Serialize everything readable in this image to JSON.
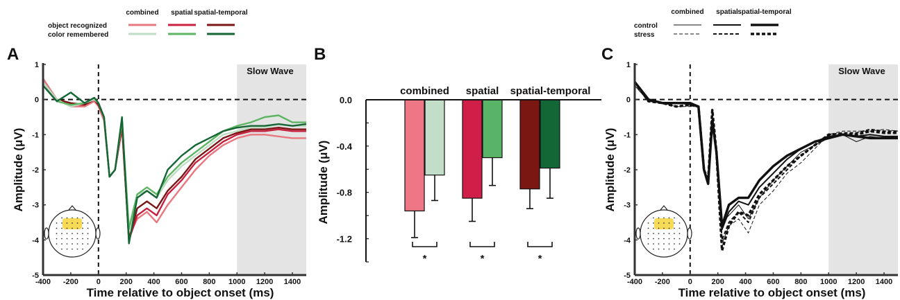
{
  "chart_data": [
    {
      "panel": "A",
      "type": "line",
      "xlabel": "Time relative to object onset (ms)",
      "ylabel": "Amplitude (μV)",
      "xlim": [
        -400,
        1500
      ],
      "ylim": [
        -5,
        1
      ],
      "xticks": [
        -400,
        -200,
        0,
        200,
        400,
        600,
        800,
        1000,
        1200,
        1400
      ],
      "yticks": [
        1,
        0,
        -1,
        -2,
        -3,
        -4,
        -5
      ],
      "shaded_region": {
        "x": [
          1000,
          1500
        ],
        "label": "Slow Wave"
      },
      "legend": {
        "columns": [
          "combined",
          "spatial",
          "spatial-temporal"
        ],
        "rows": [
          "object recognized",
          "color remembered"
        ]
      },
      "series": [
        {
          "name": "object recognized",
          "condition": "combined",
          "color": "#e87880",
          "x": [
            -400,
            -300,
            -200,
            -100,
            -30,
            0,
            40,
            80,
            120,
            170,
            220,
            280,
            350,
            420,
            500,
            600,
            700,
            800,
            900,
            1000,
            1100,
            1200,
            1300,
            1400,
            1500
          ],
          "y": [
            0.6,
            0.0,
            -0.2,
            -0.2,
            -0.05,
            -0.2,
            -0.6,
            -2.2,
            -2.0,
            -0.8,
            -3.9,
            -3.4,
            -3.2,
            -3.5,
            -3.0,
            -2.5,
            -2.0,
            -1.6,
            -1.3,
            -1.1,
            -1.0,
            -1.0,
            -1.05,
            -1.1,
            -1.1
          ]
        },
        {
          "name": "object recognized",
          "condition": "spatial",
          "color": "#c8203f",
          "x": [
            -400,
            -300,
            -200,
            -100,
            -30,
            0,
            40,
            80,
            120,
            170,
            220,
            280,
            350,
            420,
            500,
            600,
            700,
            800,
            900,
            1000,
            1100,
            1200,
            1300,
            1400,
            1500
          ],
          "y": [
            0.5,
            0.0,
            -0.15,
            -0.15,
            0.0,
            -0.15,
            -0.5,
            -2.2,
            -2.0,
            -0.8,
            -4.0,
            -3.3,
            -3.1,
            -3.3,
            -2.7,
            -2.3,
            -1.8,
            -1.5,
            -1.2,
            -1.0,
            -0.9,
            -0.9,
            -0.85,
            -0.9,
            -0.9
          ]
        },
        {
          "name": "object recognized",
          "condition": "spatial-temporal",
          "color": "#7b1515",
          "x": [
            -400,
            -300,
            -200,
            -100,
            -30,
            0,
            40,
            80,
            120,
            170,
            220,
            280,
            350,
            420,
            500,
            600,
            700,
            800,
            900,
            1000,
            1100,
            1200,
            1300,
            1400,
            1500
          ],
          "y": [
            0.5,
            0.0,
            -0.1,
            -0.15,
            0.0,
            -0.15,
            -0.5,
            -2.2,
            -2.0,
            -0.7,
            -4.0,
            -3.1,
            -2.9,
            -3.1,
            -2.6,
            -2.2,
            -1.7,
            -1.4,
            -1.1,
            -0.95,
            -0.85,
            -0.85,
            -0.8,
            -0.85,
            -0.85
          ]
        },
        {
          "name": "color remembered",
          "condition": "combined",
          "color": "#bfdcc4",
          "x": [
            -400,
            -300,
            -200,
            -100,
            -30,
            0,
            40,
            80,
            120,
            170,
            220,
            280,
            350,
            420,
            500,
            600,
            700,
            800,
            900,
            1000,
            1100,
            1200,
            1300,
            1400,
            1500
          ],
          "y": [
            0.5,
            0.0,
            -0.2,
            -0.1,
            0.0,
            -0.1,
            -0.5,
            -2.2,
            -2.0,
            -0.6,
            -3.6,
            -2.7,
            -2.6,
            -2.8,
            -2.3,
            -1.9,
            -1.6,
            -1.3,
            -1.0,
            -0.9,
            -0.8,
            -0.8,
            -0.7,
            -0.75,
            -0.75
          ]
        },
        {
          "name": "color remembered",
          "condition": "spatial",
          "color": "#5db564",
          "x": [
            -400,
            -300,
            -200,
            -100,
            -30,
            0,
            40,
            80,
            120,
            170,
            220,
            280,
            350,
            420,
            500,
            600,
            700,
            800,
            900,
            1000,
            1100,
            1200,
            1300,
            1400,
            1500
          ],
          "y": [
            0.4,
            -0.05,
            -0.15,
            -0.1,
            0.05,
            -0.1,
            -0.5,
            -2.2,
            -2.0,
            -0.6,
            -3.7,
            -2.7,
            -2.5,
            -2.7,
            -2.2,
            -1.8,
            -1.5,
            -1.2,
            -0.9,
            -0.75,
            -0.65,
            -0.5,
            -0.45,
            -0.65,
            -0.65
          ]
        },
        {
          "name": "color remembered",
          "condition": "spatial-temporal",
          "color": "#146634",
          "x": [
            -400,
            -300,
            -200,
            -100,
            -30,
            0,
            40,
            80,
            120,
            170,
            220,
            280,
            350,
            420,
            500,
            600,
            700,
            800,
            900,
            1000,
            1100,
            1200,
            1300,
            1400,
            1500
          ],
          "y": [
            0.4,
            -0.05,
            0.2,
            -0.1,
            0.05,
            -0.1,
            -0.5,
            -2.2,
            -2.0,
            -0.5,
            -4.1,
            -2.8,
            -2.6,
            -2.8,
            -2.0,
            -1.6,
            -1.3,
            -1.1,
            -0.9,
            -0.8,
            -0.75,
            -0.75,
            -0.7,
            -0.75,
            -0.7
          ]
        }
      ]
    },
    {
      "panel": "B",
      "type": "bar",
      "ylabel": "Amplitude (μV)",
      "ylim": [
        -1.4,
        0
      ],
      "yticks": [
        "0.0",
        "-0.4",
        "-0.8",
        "-1.2"
      ],
      "ytick_values": [
        0.0,
        -0.4,
        -0.8,
        -1.2
      ],
      "groups": [
        {
          "label": "combined",
          "bars": [
            {
              "series": "object recognized",
              "value": -0.96,
              "error": 0.23,
              "color": "#ee7785"
            },
            {
              "series": "color remembered",
              "value": -0.65,
              "error": 0.22,
              "color": "#c3dec8"
            }
          ]
        },
        {
          "label": "spatial",
          "bars": [
            {
              "series": "object recognized",
              "value": -0.85,
              "error": 0.2,
              "color": "#cf1f48"
            },
            {
              "series": "color remembered",
              "value": -0.5,
              "error": 0.24,
              "color": "#5ab467"
            }
          ]
        },
        {
          "label": "spatial-temporal",
          "bars": [
            {
              "series": "object recognized",
              "value": -0.77,
              "error": 0.17,
              "color": "#7a1712"
            },
            {
              "series": "color remembered",
              "value": -0.59,
              "error": 0.26,
              "color": "#136636"
            }
          ]
        }
      ],
      "significance": [
        "*",
        "*",
        "*"
      ]
    },
    {
      "panel": "C",
      "type": "line",
      "xlabel": "Time relative to object onset (ms)",
      "ylabel": "Amplitude (μV)",
      "xlim": [
        -400,
        1500
      ],
      "ylim": [
        -5,
        1
      ],
      "xticks": [
        -400,
        -200,
        0,
        200,
        400,
        600,
        800,
        1000,
        1200,
        1400
      ],
      "yticks": [
        1,
        0,
        -1,
        -2,
        -3,
        -4,
        -5
      ],
      "shaded_region": {
        "x": [
          1000,
          1500
        ],
        "label": "Slow Wave"
      },
      "legend": {
        "columns": [
          "combined",
          "spatial",
          "spatial-temporal"
        ],
        "rows": [
          "control",
          "stress"
        ]
      },
      "series": [
        {
          "name": "control",
          "condition": "combined",
          "color": "#111111",
          "dash": false,
          "weight": 1,
          "x": [
            -400,
            -300,
            -200,
            -100,
            0,
            60,
            100,
            130,
            160,
            190,
            230,
            280,
            350,
            420,
            500,
            600,
            700,
            800,
            900,
            1000,
            1100,
            1200,
            1300,
            1400,
            1500
          ],
          "y": [
            0.4,
            -0.05,
            -0.1,
            -0.1,
            -0.15,
            -0.2,
            -2.0,
            -2.3,
            -0.6,
            -1.5,
            -3.5,
            -3.3,
            -3.0,
            -3.4,
            -2.8,
            -2.3,
            -1.9,
            -1.5,
            -1.3,
            -1.1,
            -1.0,
            -1.2,
            -1.05,
            -1.1,
            -1.05
          ]
        },
        {
          "name": "control",
          "condition": "spatial",
          "color": "#111111",
          "dash": false,
          "weight": 2,
          "x": [
            -400,
            -300,
            -200,
            -100,
            0,
            60,
            100,
            130,
            160,
            190,
            230,
            280,
            350,
            420,
            500,
            600,
            700,
            800,
            900,
            1000,
            1100,
            1200,
            1300,
            1400,
            1500
          ],
          "y": [
            0.5,
            0.0,
            -0.1,
            -0.1,
            -0.1,
            -0.2,
            -2.0,
            -2.3,
            -0.6,
            -1.5,
            -3.7,
            -3.2,
            -2.9,
            -3.0,
            -2.5,
            -2.1,
            -1.7,
            -1.4,
            -1.2,
            -1.05,
            -1.0,
            -1.05,
            -1.0,
            -1.05,
            -1.05
          ]
        },
        {
          "name": "control",
          "condition": "spatial-temporal",
          "color": "#111111",
          "dash": false,
          "weight": 3.5,
          "x": [
            -400,
            -300,
            -200,
            -100,
            0,
            60,
            100,
            130,
            160,
            190,
            230,
            280,
            350,
            420,
            500,
            600,
            700,
            800,
            900,
            1000,
            1100,
            1200,
            1300,
            1400,
            1500
          ],
          "y": [
            0.5,
            0.0,
            -0.1,
            -0.1,
            -0.1,
            -0.2,
            -2.0,
            -2.4,
            -0.6,
            -1.5,
            -3.6,
            -3.0,
            -2.8,
            -2.8,
            -2.3,
            -1.9,
            -1.6,
            -1.4,
            -1.2,
            -1.1,
            -1.0,
            -1.05,
            -1.1,
            -1.1,
            -1.1
          ]
        },
        {
          "name": "stress",
          "condition": "combined",
          "color": "#111111",
          "dash": true,
          "weight": 1,
          "x": [
            -400,
            -300,
            -200,
            -100,
            0,
            60,
            100,
            130,
            160,
            190,
            230,
            280,
            350,
            420,
            500,
            600,
            700,
            800,
            900,
            1000,
            1100,
            1200,
            1300,
            1400,
            1500
          ],
          "y": [
            0.4,
            -0.05,
            -0.1,
            -0.2,
            -0.2,
            -0.2,
            -2.0,
            -2.3,
            -0.5,
            -1.5,
            -4.1,
            -3.6,
            -3.4,
            -3.8,
            -3.0,
            -2.6,
            -2.1,
            -1.8,
            -1.4,
            -1.0,
            -0.9,
            -0.9,
            -0.9,
            -0.85,
            -0.9
          ]
        },
        {
          "name": "stress",
          "condition": "spatial",
          "color": "#111111",
          "dash": true,
          "weight": 2,
          "x": [
            -400,
            -300,
            -200,
            -100,
            0,
            60,
            100,
            130,
            160,
            190,
            230,
            280,
            350,
            420,
            500,
            600,
            700,
            800,
            900,
            1000,
            1100,
            1200,
            1300,
            1400,
            1500
          ],
          "y": [
            0.5,
            -0.05,
            -0.1,
            -0.2,
            -0.15,
            -0.2,
            -2.0,
            -2.3,
            -0.4,
            -1.5,
            -4.0,
            -3.5,
            -3.2,
            -3.5,
            -2.8,
            -2.4,
            -2.0,
            -1.6,
            -1.3,
            -1.0,
            -0.95,
            -0.95,
            -0.85,
            -0.9,
            -0.9
          ]
        },
        {
          "name": "stress",
          "condition": "spatial-temporal",
          "color": "#111111",
          "dash": true,
          "weight": 3.5,
          "x": [
            -400,
            -300,
            -200,
            -100,
            0,
            60,
            100,
            130,
            160,
            190,
            230,
            280,
            350,
            420,
            500,
            600,
            700,
            800,
            900,
            1000,
            1100,
            1200,
            1300,
            1400,
            1500
          ],
          "y": [
            0.5,
            -0.05,
            -0.1,
            -0.2,
            -0.15,
            -0.2,
            -2.0,
            -2.3,
            -0.3,
            -1.5,
            -4.3,
            -3.6,
            -3.2,
            -3.3,
            -2.7,
            -2.3,
            -1.9,
            -1.6,
            -1.3,
            -1.0,
            -1.0,
            -1.0,
            -0.9,
            -0.95,
            -0.95
          ]
        }
      ]
    }
  ],
  "labels": {
    "panelA": "A",
    "panelB": "B",
    "panelC": "C"
  }
}
